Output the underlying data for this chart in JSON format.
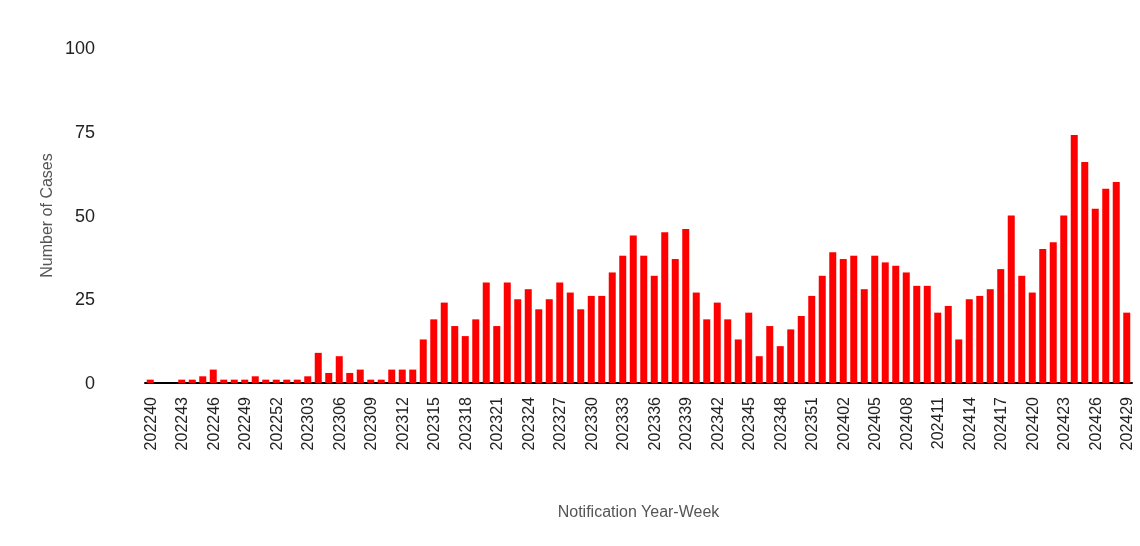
{
  "chart_data": {
    "type": "bar",
    "xlabel": "Notification Year-Week",
    "ylabel": "Number of Cases",
    "categories": [
      "202240",
      null,
      null,
      "202243",
      null,
      null,
      "202246",
      null,
      null,
      "202249",
      null,
      null,
      "202252",
      null,
      null,
      "202303",
      null,
      null,
      "202306",
      null,
      null,
      "202309",
      null,
      null,
      "202312",
      null,
      null,
      "202315",
      null,
      null,
      "202318",
      null,
      null,
      "202321",
      null,
      null,
      "202324",
      null,
      null,
      "202327",
      null,
      null,
      "202330",
      null,
      null,
      "202333",
      null,
      null,
      "202336",
      null,
      null,
      "202339",
      null,
      null,
      "202342",
      null,
      null,
      "202345",
      null,
      null,
      "202348",
      null,
      null,
      "202351",
      null,
      null,
      "202402",
      null,
      null,
      "202405",
      null,
      null,
      "202408",
      null,
      null,
      "202411",
      null,
      null,
      "202414",
      null,
      null,
      "202417",
      null,
      null,
      "202420",
      null,
      null,
      "202423",
      null,
      null,
      "202426",
      null,
      null,
      "202429"
    ],
    "values": [
      1,
      0,
      0,
      1,
      1,
      2,
      4,
      1,
      1,
      1,
      2,
      1,
      1,
      1,
      1,
      2,
      9,
      3,
      8,
      3,
      4,
      1,
      1,
      4,
      4,
      4,
      13,
      19,
      24,
      17,
      14,
      19,
      30,
      17,
      30,
      25,
      28,
      22,
      25,
      30,
      27,
      22,
      26,
      26,
      33,
      38,
      44,
      38,
      32,
      45,
      37,
      46,
      27,
      19,
      24,
      19,
      13,
      21,
      8,
      17,
      11,
      16,
      20,
      26,
      32,
      39,
      37,
      38,
      28,
      38,
      36,
      35,
      33,
      29,
      29,
      21,
      23,
      13,
      25,
      26,
      28,
      34,
      50,
      32,
      27,
      40,
      42,
      50,
      74,
      66,
      52,
      58,
      60,
      21
    ],
    "color": "#ff0000",
    "ylim": [
      0,
      100
    ],
    "yticks": [
      0,
      25,
      50,
      75,
      100
    ],
    "grid": false
  }
}
